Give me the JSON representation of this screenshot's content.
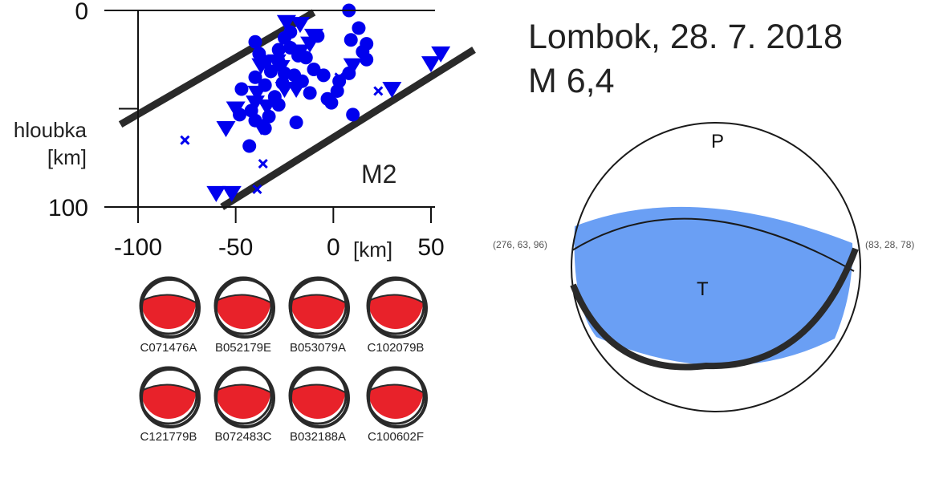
{
  "event": {
    "title_line1": "Lombok, 28. 7. 2018",
    "title_line2": "M 6,4"
  },
  "section": {
    "ylabel_line1": "hloubka",
    "ylabel_line2": "[km]",
    "xunit": "[km]",
    "zone_label": "M2"
  },
  "chart_data": {
    "type": "scatter",
    "xlim": [
      -100,
      55
    ],
    "ylim": [
      0,
      100
    ],
    "y_inverted": true,
    "x_ticks": [
      -100,
      -50,
      0,
      50
    ],
    "x_tick_labels": [
      "-100",
      "-50",
      "0",
      "50"
    ],
    "y_ticks": [
      0,
      50,
      100
    ],
    "y_tick_labels": [
      "0",
      "",
      "100"
    ],
    "xlabel": "[km]",
    "ylabel": "hloubka [km]",
    "grid": false,
    "color": "#0000ee",
    "band_lines": [
      {
        "x1": -109,
        "y1": 58,
        "x2": -10,
        "y2": 1
      },
      {
        "x1": -57,
        "y1": 100,
        "x2": 72,
        "y2": 20
      }
    ],
    "series": [
      {
        "marker": "circle",
        "points": [
          [
            8,
            0
          ],
          [
            -40,
            16
          ],
          [
            -25,
            14
          ],
          [
            -22,
            11
          ],
          [
            -28,
            20
          ],
          [
            -35,
            26
          ],
          [
            -25,
            32
          ],
          [
            -18,
            23
          ],
          [
            -10,
            30
          ],
          [
            -8,
            13
          ],
          [
            9,
            15
          ],
          [
            15,
            21
          ],
          [
            17,
            25
          ],
          [
            -47,
            40
          ],
          [
            -40,
            34
          ],
          [
            -35,
            38
          ],
          [
            -20,
            33
          ],
          [
            -30,
            44
          ],
          [
            -42,
            51
          ],
          [
            -28,
            48
          ],
          [
            -5,
            33
          ],
          [
            -3,
            45
          ],
          [
            -12,
            42
          ],
          [
            -1,
            47
          ],
          [
            3,
            36
          ],
          [
            2,
            41
          ],
          [
            10,
            53
          ],
          [
            -40,
            56
          ],
          [
            -48,
            53
          ],
          [
            -33,
            54
          ],
          [
            -19,
            57
          ],
          [
            -35,
            60
          ],
          [
            -43,
            69
          ],
          [
            13,
            9
          ],
          [
            -28,
            26
          ],
          [
            -22,
            19
          ],
          [
            -38,
            22
          ],
          [
            -14,
            24
          ],
          [
            -32,
            31
          ],
          [
            17,
            17
          ],
          [
            8,
            32
          ],
          [
            -26,
            37
          ],
          [
            -16,
            36
          ]
        ]
      },
      {
        "marker": "triangle-down",
        "points": [
          [
            -24,
            6
          ],
          [
            -17,
            7
          ],
          [
            -10,
            13
          ],
          [
            -17,
            21
          ],
          [
            -29,
            26
          ],
          [
            -37,
            28
          ],
          [
            -39,
            42
          ],
          [
            -50,
            50
          ],
          [
            -55,
            60
          ],
          [
            -37,
            59
          ],
          [
            -34,
            49
          ],
          [
            -40,
            47
          ],
          [
            -25,
            40
          ],
          [
            -19,
            40
          ],
          [
            10,
            28
          ],
          [
            30,
            40
          ],
          [
            50,
            27
          ],
          [
            55,
            22
          ],
          [
            -60,
            93
          ],
          [
            -52,
            93
          ],
          [
            -27,
            29
          ],
          [
            -12,
            17
          ]
        ]
      },
      {
        "marker": "x",
        "points": [
          [
            -76,
            66
          ],
          [
            -36,
            78
          ],
          [
            -39,
            91
          ],
          [
            3,
            34
          ],
          [
            -22,
            33
          ],
          [
            23,
            41
          ]
        ]
      }
    ]
  },
  "beachballs": [
    {
      "label": "C071476A",
      "fill": "#e8222a"
    },
    {
      "label": "B052179E",
      "fill": "#e8222a"
    },
    {
      "label": "B053079A",
      "fill": "#e8222a"
    },
    {
      "label": "C102079B",
      "fill": "#e8222a"
    },
    {
      "label": "C121779B",
      "fill": "#e8222a"
    },
    {
      "label": "B072483C",
      "fill": "#e8222a"
    },
    {
      "label": "B032188A",
      "fill": "#e8222a"
    },
    {
      "label": "C100602F",
      "fill": "#e8222a"
    }
  ],
  "mechanism": {
    "p_label": "P",
    "t_label": "T",
    "plane1_label": "(276, 63, 96)",
    "plane2_label": "(83, 28, 78)",
    "fill": "#6a9ff4"
  }
}
